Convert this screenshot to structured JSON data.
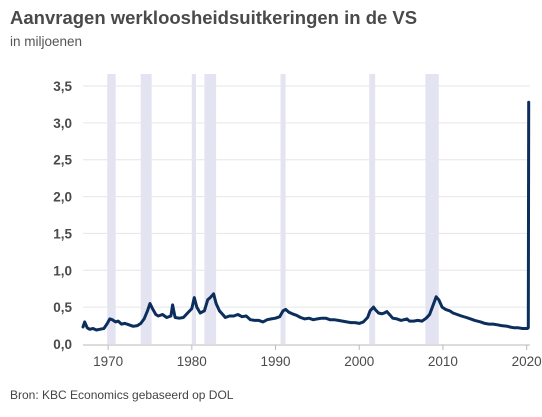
{
  "header": {
    "title": "Aanvragen werkloosheidsuitkeringen in de VS",
    "subtitle": "in miljoenen"
  },
  "footer": {
    "source": "Bron: KBC Economics gebaseerd op DOL"
  },
  "colors": {
    "line": "#0b2e5c",
    "recession": "#e3e3f1",
    "grid": "#e6e6e6",
    "axis": "#b9b9b9"
  },
  "chart_data": {
    "type": "line",
    "title": "Aanvragen werkloosheidsuitkeringen in de VS",
    "subtitle": "in miljoenen",
    "xlabel": "",
    "ylabel": "",
    "xlim": [
      1967,
      2020.4
    ],
    "ylim": [
      0,
      3.5
    ],
    "x_ticks": [
      1970,
      1980,
      1990,
      2000,
      2010,
      2020
    ],
    "x_tick_labels": [
      "1970",
      "1980",
      "1990",
      "2000",
      "2010",
      "2020"
    ],
    "y_ticks": [
      0,
      0.5,
      1.0,
      1.5,
      2.0,
      2.5,
      3.0,
      3.5
    ],
    "y_tick_labels": [
      "0,0",
      "0,5",
      "1,0",
      "1,5",
      "2,0",
      "2,5",
      "3,0",
      "3,5"
    ],
    "grid": true,
    "legend": "none",
    "recession_periods": [
      [
        1969.9,
        1970.9
      ],
      [
        1973.9,
        1975.2
      ],
      [
        1980.0,
        1980.5
      ],
      [
        1981.5,
        1982.9
      ],
      [
        1990.6,
        1991.2
      ],
      [
        2001.2,
        2001.9
      ],
      [
        2007.9,
        2009.5
      ]
    ],
    "series": [
      {
        "x": [
          1967.0,
          1967.2,
          1967.5,
          1967.8,
          1968.2,
          1968.6,
          1969.0,
          1969.5,
          1969.9,
          1970.2,
          1970.5,
          1970.9,
          1971.2,
          1971.6,
          1972.0,
          1972.5,
          1973.0,
          1973.5,
          1973.9,
          1974.3,
          1974.7,
          1975.0,
          1975.3,
          1975.7,
          1976.0,
          1976.5,
          1977.0,
          1977.5,
          1977.7,
          1978.0,
          1978.5,
          1979.0,
          1979.5,
          1980.0,
          1980.3,
          1980.6,
          1981.0,
          1981.5,
          1981.9,
          1982.2,
          1982.6,
          1982.9,
          1983.3,
          1983.7,
          1984.0,
          1984.5,
          1985.0,
          1985.5,
          1986.0,
          1986.5,
          1987.0,
          1987.5,
          1988.0,
          1988.5,
          1989.0,
          1989.5,
          1990.0,
          1990.5,
          1990.9,
          1991.2,
          1991.6,
          1992.0,
          1992.5,
          1993.0,
          1993.5,
          1994.0,
          1994.5,
          1995.0,
          1995.5,
          1996.0,
          1996.5,
          1997.0,
          1997.5,
          1998.0,
          1998.5,
          1999.0,
          1999.5,
          2000.0,
          2000.5,
          2001.0,
          2001.3,
          2001.7,
          2001.9,
          2002.3,
          2002.7,
          2003.0,
          2003.3,
          2003.7,
          2004.0,
          2004.5,
          2005.0,
          2005.7,
          2006.0,
          2006.5,
          2007.0,
          2007.5,
          2008.0,
          2008.4,
          2008.8,
          2009.2,
          2009.5,
          2009.9,
          2010.3,
          2010.8,
          2011.2,
          2011.7,
          2012.2,
          2012.8,
          2013.3,
          2013.8,
          2014.5,
          2015.0,
          2015.5,
          2016.0,
          2016.5,
          2017.0,
          2017.7,
          2018.0,
          2018.5,
          2019.0,
          2019.5,
          2019.9,
          2020.1,
          2020.2,
          2020.25
        ],
        "values": [
          0.23,
          0.3,
          0.22,
          0.2,
          0.21,
          0.19,
          0.2,
          0.21,
          0.28,
          0.34,
          0.33,
          0.3,
          0.31,
          0.27,
          0.28,
          0.26,
          0.24,
          0.25,
          0.28,
          0.34,
          0.45,
          0.55,
          0.48,
          0.4,
          0.38,
          0.4,
          0.36,
          0.38,
          0.53,
          0.36,
          0.35,
          0.36,
          0.42,
          0.48,
          0.63,
          0.5,
          0.42,
          0.45,
          0.6,
          0.63,
          0.68,
          0.55,
          0.45,
          0.4,
          0.36,
          0.38,
          0.38,
          0.4,
          0.37,
          0.38,
          0.33,
          0.32,
          0.32,
          0.3,
          0.33,
          0.34,
          0.35,
          0.37,
          0.45,
          0.47,
          0.43,
          0.41,
          0.39,
          0.36,
          0.34,
          0.35,
          0.33,
          0.34,
          0.35,
          0.35,
          0.33,
          0.33,
          0.32,
          0.31,
          0.3,
          0.29,
          0.29,
          0.28,
          0.3,
          0.36,
          0.45,
          0.5,
          0.47,
          0.42,
          0.41,
          0.42,
          0.44,
          0.39,
          0.35,
          0.34,
          0.32,
          0.34,
          0.31,
          0.31,
          0.32,
          0.31,
          0.35,
          0.4,
          0.52,
          0.64,
          0.6,
          0.5,
          0.47,
          0.45,
          0.42,
          0.4,
          0.38,
          0.36,
          0.34,
          0.32,
          0.3,
          0.28,
          0.27,
          0.27,
          0.26,
          0.25,
          0.24,
          0.23,
          0.22,
          0.22,
          0.21,
          0.21,
          0.21,
          0.22,
          3.28
        ]
      }
    ]
  }
}
